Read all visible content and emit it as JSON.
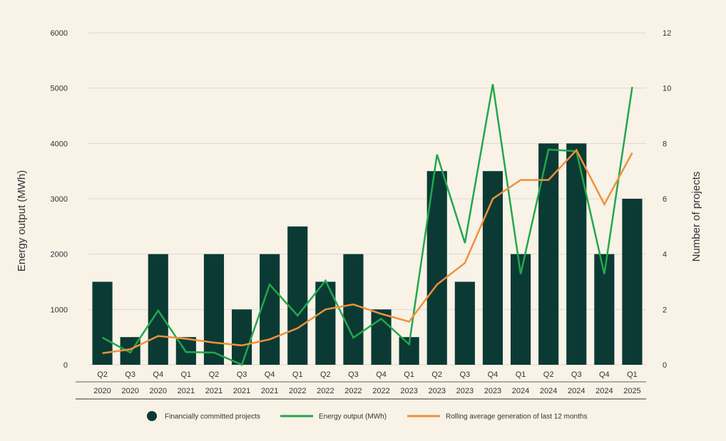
{
  "chart_data": {
    "type": "bar",
    "categories": [
      [
        "Q2",
        "2020"
      ],
      [
        "Q3",
        "2020"
      ],
      [
        "Q4",
        "2020"
      ],
      [
        "Q1",
        "2021"
      ],
      [
        "Q2",
        "2021"
      ],
      [
        "Q3",
        "2021"
      ],
      [
        "Q4",
        "2021"
      ],
      [
        "Q1",
        "2022"
      ],
      [
        "Q2",
        "2022"
      ],
      [
        "Q3",
        "2022"
      ],
      [
        "Q4",
        "2022"
      ],
      [
        "Q1",
        "2023"
      ],
      [
        "Q2",
        "2023"
      ],
      [
        "Q3",
        "2023"
      ],
      [
        "Q4",
        "2023"
      ],
      [
        "Q1",
        "2024"
      ],
      [
        "Q2",
        "2024"
      ],
      [
        "Q3",
        "2024"
      ],
      [
        "Q4",
        "2024"
      ],
      [
        "Q1",
        "2025"
      ]
    ],
    "series": [
      {
        "name": "Financially committed projects",
        "type": "bar",
        "axis": "right",
        "color": "#0b3a34",
        "values": [
          3,
          1,
          4,
          1,
          4,
          2,
          4,
          5,
          3,
          4,
          2,
          1,
          7,
          3,
          7,
          4,
          8,
          8,
          4,
          6
        ]
      },
      {
        "name": "Energy output (MWh)",
        "type": "line",
        "axis": "left",
        "color": "#22a84a",
        "values": [
          490,
          220,
          980,
          230,
          220,
          0,
          1450,
          890,
          1520,
          490,
          830,
          370,
          3800,
          2200,
          5070,
          1640,
          3890,
          3860,
          1640,
          5020
        ]
      },
      {
        "name": "Rolling average generation of last 12 months",
        "type": "line",
        "axis": "left",
        "color": "#f0913a",
        "values": [
          210,
          280,
          520,
          470,
          400,
          350,
          460,
          660,
          1000,
          1090,
          920,
          780,
          1450,
          1840,
          3000,
          3340,
          3340,
          3880,
          2900,
          3830
        ]
      }
    ],
    "ylabel": "Energy output (MWh)",
    "ylabel_right": "Number of projects",
    "ylim": [
      0,
      6000
    ],
    "ylim_right": [
      0,
      12
    ],
    "yticks": [
      "0",
      "1000",
      "2000",
      "3000",
      "4000",
      "5000",
      "6000"
    ],
    "yticks_right": [
      "0",
      "2",
      "4",
      "6",
      "8",
      "10",
      "12"
    ],
    "grid": true,
    "legend_position": "bottom"
  }
}
